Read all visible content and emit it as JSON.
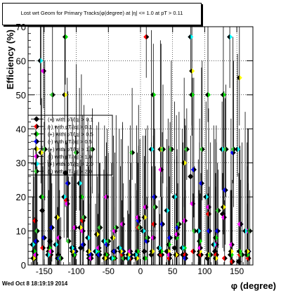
{
  "title": "Lost wrt Geom for Primary Tracks(φ(degree) at |η| <= 1.0 at pT > 0.11",
  "footer": "Wed Oct  8 18:19:19 2014",
  "chart_data": {
    "type": "scatter",
    "xlabel": "φ (degree)",
    "ylabel": "Efficiency (%)",
    "xlim": [
      -175,
      175
    ],
    "ylim": [
      0,
      70
    ],
    "x_ticks": [
      -150,
      -100,
      -50,
      0,
      50,
      100,
      150
    ],
    "y_ticks": [
      0,
      10,
      20,
      30,
      40,
      50,
      60,
      70
    ],
    "grid": true,
    "legend_position": "left, middle",
    "series": [
      {
        "name": "(+) with pT/|q| > 0.1",
        "color": "#000000",
        "side": "left",
        "points": [
          [
            -165,
            2
          ],
          [
            -153,
            16
          ],
          [
            -141,
            7
          ],
          [
            -128,
            3
          ],
          [
            -117,
            27
          ],
          [
            -104,
            5
          ],
          [
            -93,
            5
          ],
          [
            -80,
            2
          ],
          [
            -66,
            3
          ],
          [
            -53,
            2
          ],
          [
            -42,
            4
          ],
          [
            -30,
            4
          ],
          [
            -18,
            3
          ],
          [
            -6,
            3
          ],
          [
            6,
            4
          ],
          [
            17,
            3
          ],
          [
            30,
            3
          ],
          [
            41,
            4
          ],
          [
            53,
            5
          ],
          [
            66,
            3
          ],
          [
            78,
            26
          ],
          [
            91,
            3
          ],
          [
            104,
            2
          ],
          [
            116,
            4
          ],
          [
            128,
            15
          ],
          [
            140,
            3
          ],
          [
            153,
            1
          ],
          [
            166,
            3
          ]
        ]
      },
      {
        "name": "(-) with pT/|q| > 0.1",
        "color": "#ff0000",
        "side": "right",
        "points": [
          [
            -164,
            13
          ],
          [
            -152,
            5
          ],
          [
            -140,
            3
          ],
          [
            -127,
            2
          ],
          [
            -115,
            19
          ],
          [
            -103,
            3
          ],
          [
            -90,
            13
          ],
          [
            -78,
            3
          ],
          [
            -65,
            4
          ],
          [
            -52,
            3
          ],
          [
            -40,
            2
          ],
          [
            -28,
            3
          ],
          [
            -15,
            2
          ],
          [
            -3,
            11
          ],
          [
            9,
            67
          ],
          [
            21,
            12
          ],
          [
            33,
            3
          ],
          [
            45,
            2
          ],
          [
            57,
            3
          ],
          [
            70,
            3
          ],
          [
            82,
            4
          ],
          [
            94,
            3
          ],
          [
            106,
            15
          ],
          [
            118,
            3
          ],
          [
            131,
            2
          ],
          [
            143,
            1
          ],
          [
            155,
            3
          ],
          [
            168,
            2
          ]
        ]
      },
      {
        "name": "(+) with pT/|q| > 0.5",
        "color": "#00dd00",
        "side": "left",
        "points": [
          [
            -166,
            4
          ],
          [
            -154,
            20
          ],
          [
            -142,
            5
          ],
          [
            -129,
            2
          ],
          [
            -117,
            67
          ],
          [
            -104,
            3
          ],
          [
            -92,
            20
          ],
          [
            -80,
            3
          ],
          [
            -67,
            4
          ],
          [
            -54,
            3
          ],
          [
            -42,
            2
          ],
          [
            -29,
            4
          ],
          [
            -17,
            3
          ],
          [
            -5,
            4
          ],
          [
            7,
            2
          ],
          [
            20,
            50
          ],
          [
            32,
            4
          ],
          [
            44,
            6
          ],
          [
            56,
            8
          ],
          [
            68,
            5
          ],
          [
            80,
            50
          ],
          [
            92,
            7
          ],
          [
            105,
            50
          ],
          [
            117,
            8
          ],
          [
            129,
            50
          ],
          [
            141,
            3
          ],
          [
            154,
            4
          ],
          [
            166,
            3
          ]
        ]
      },
      {
        "name": "(-) with pT/|q| > 0.5",
        "color": "#0000ff",
        "side": "right",
        "points": [
          [
            -162,
            7
          ],
          [
            -150,
            8
          ],
          [
            -138,
            11
          ],
          [
            -126,
            2
          ],
          [
            -113,
            24
          ],
          [
            -101,
            4
          ],
          [
            -89,
            6
          ],
          [
            -77,
            3
          ],
          [
            -64,
            3
          ],
          [
            -52,
            6
          ],
          [
            -40,
            4
          ],
          [
            -27,
            4
          ],
          [
            -15,
            3
          ],
          [
            -3,
            13
          ],
          [
            10,
            7
          ],
          [
            22,
            20
          ],
          [
            34,
            12
          ],
          [
            46,
            8
          ],
          [
            58,
            11
          ],
          [
            70,
            2
          ],
          [
            83,
            28
          ],
          [
            95,
            24
          ],
          [
            107,
            10
          ],
          [
            120,
            10
          ],
          [
            132,
            22
          ],
          [
            144,
            33
          ],
          [
            156,
            12
          ],
          [
            168,
            4
          ]
        ]
      },
      {
        "name": "(+) with pT/|q| > 1.0",
        "color": "#ffff00",
        "side": "left",
        "points": [
          [
            -167,
            2
          ],
          [
            -155,
            33
          ],
          [
            -143,
            4
          ],
          [
            -130,
            14
          ],
          [
            -118,
            50
          ],
          [
            -106,
            4
          ],
          [
            -94,
            11
          ],
          [
            -81,
            4
          ],
          [
            -68,
            9
          ],
          [
            -56,
            2
          ],
          [
            -43,
            8
          ],
          [
            -31,
            4
          ],
          [
            -19,
            3
          ],
          [
            -6,
            2
          ],
          [
            6,
            14
          ],
          [
            18,
            4
          ],
          [
            31,
            34
          ],
          [
            43,
            4
          ],
          [
            55,
            3
          ],
          [
            68,
            30
          ],
          [
            80,
            57
          ],
          [
            92,
            4
          ],
          [
            105,
            3
          ],
          [
            117,
            2
          ],
          [
            129,
            17
          ],
          [
            141,
            4
          ],
          [
            154,
            55
          ],
          [
            166,
            4
          ]
        ]
      },
      {
        "name": "(-) with pT/|q| > 1.0",
        "color": "#ff00ff",
        "side": "right",
        "points": [
          [
            -163,
            3
          ],
          [
            -151,
            57
          ],
          [
            -139,
            4
          ],
          [
            -127,
            8
          ],
          [
            -114,
            18
          ],
          [
            -102,
            11
          ],
          [
            -90,
            10
          ],
          [
            -77,
            2
          ],
          [
            -65,
            5
          ],
          [
            -53,
            20
          ],
          [
            -40,
            10
          ],
          [
            -28,
            12
          ],
          [
            -16,
            4
          ],
          [
            -4,
            14
          ],
          [
            8,
            17
          ],
          [
            20,
            8
          ],
          [
            32,
            28
          ],
          [
            45,
            3
          ],
          [
            57,
            9
          ],
          [
            69,
            13
          ],
          [
            81,
            18
          ],
          [
            93,
            5
          ],
          [
            106,
            17
          ],
          [
            118,
            6
          ],
          [
            130,
            14
          ],
          [
            142,
            6
          ],
          [
            155,
            12
          ],
          [
            167,
            10
          ]
        ]
      },
      {
        "name": "(+) with pT/|q| > 2.0",
        "color": "#00ffff",
        "side": "left",
        "points": [
          [
            -168,
            6
          ],
          [
            -156,
            60
          ],
          [
            -144,
            3
          ],
          [
            -132,
            6
          ],
          [
            -119,
            20
          ],
          [
            -107,
            5
          ],
          [
            -95,
            24
          ],
          [
            -82,
            8
          ],
          [
            -70,
            4
          ],
          [
            -57,
            7
          ],
          [
            -45,
            2
          ],
          [
            -33,
            5
          ],
          [
            -20,
            2
          ],
          [
            -8,
            3
          ],
          [
            4,
            10
          ],
          [
            17,
            34
          ],
          [
            29,
            5
          ],
          [
            41,
            16
          ],
          [
            53,
            20
          ],
          [
            65,
            5
          ],
          [
            78,
            67
          ],
          [
            90,
            10
          ],
          [
            102,
            20
          ],
          [
            114,
            6
          ],
          [
            127,
            34
          ],
          [
            139,
            67
          ],
          [
            151,
            34
          ],
          [
            163,
            10
          ]
        ]
      },
      {
        "name": "(-) with pT/|q| > 2.0",
        "color": "#33cc33",
        "side": "right",
        "points": [
          [
            -161,
            10
          ],
          [
            -149,
            34
          ],
          [
            -137,
            50
          ],
          [
            -124,
            2
          ],
          [
            -112,
            7
          ],
          [
            -100,
            33
          ],
          [
            -88,
            14
          ],
          [
            -75,
            34
          ],
          [
            -63,
            11
          ],
          [
            -50,
            7
          ],
          [
            -38,
            11
          ],
          [
            -26,
            2
          ],
          [
            -13,
            33
          ],
          [
            -1,
            11
          ],
          [
            11,
            8
          ],
          [
            23,
            17
          ],
          [
            35,
            34
          ],
          [
            48,
            34
          ],
          [
            60,
            12
          ],
          [
            72,
            34
          ],
          [
            84,
            10
          ],
          [
            96,
            34
          ],
          [
            109,
            3
          ],
          [
            121,
            16
          ],
          [
            133,
            34
          ],
          [
            145,
            34
          ],
          [
            158,
            3
          ],
          [
            170,
            10
          ]
        ]
      }
    ]
  }
}
